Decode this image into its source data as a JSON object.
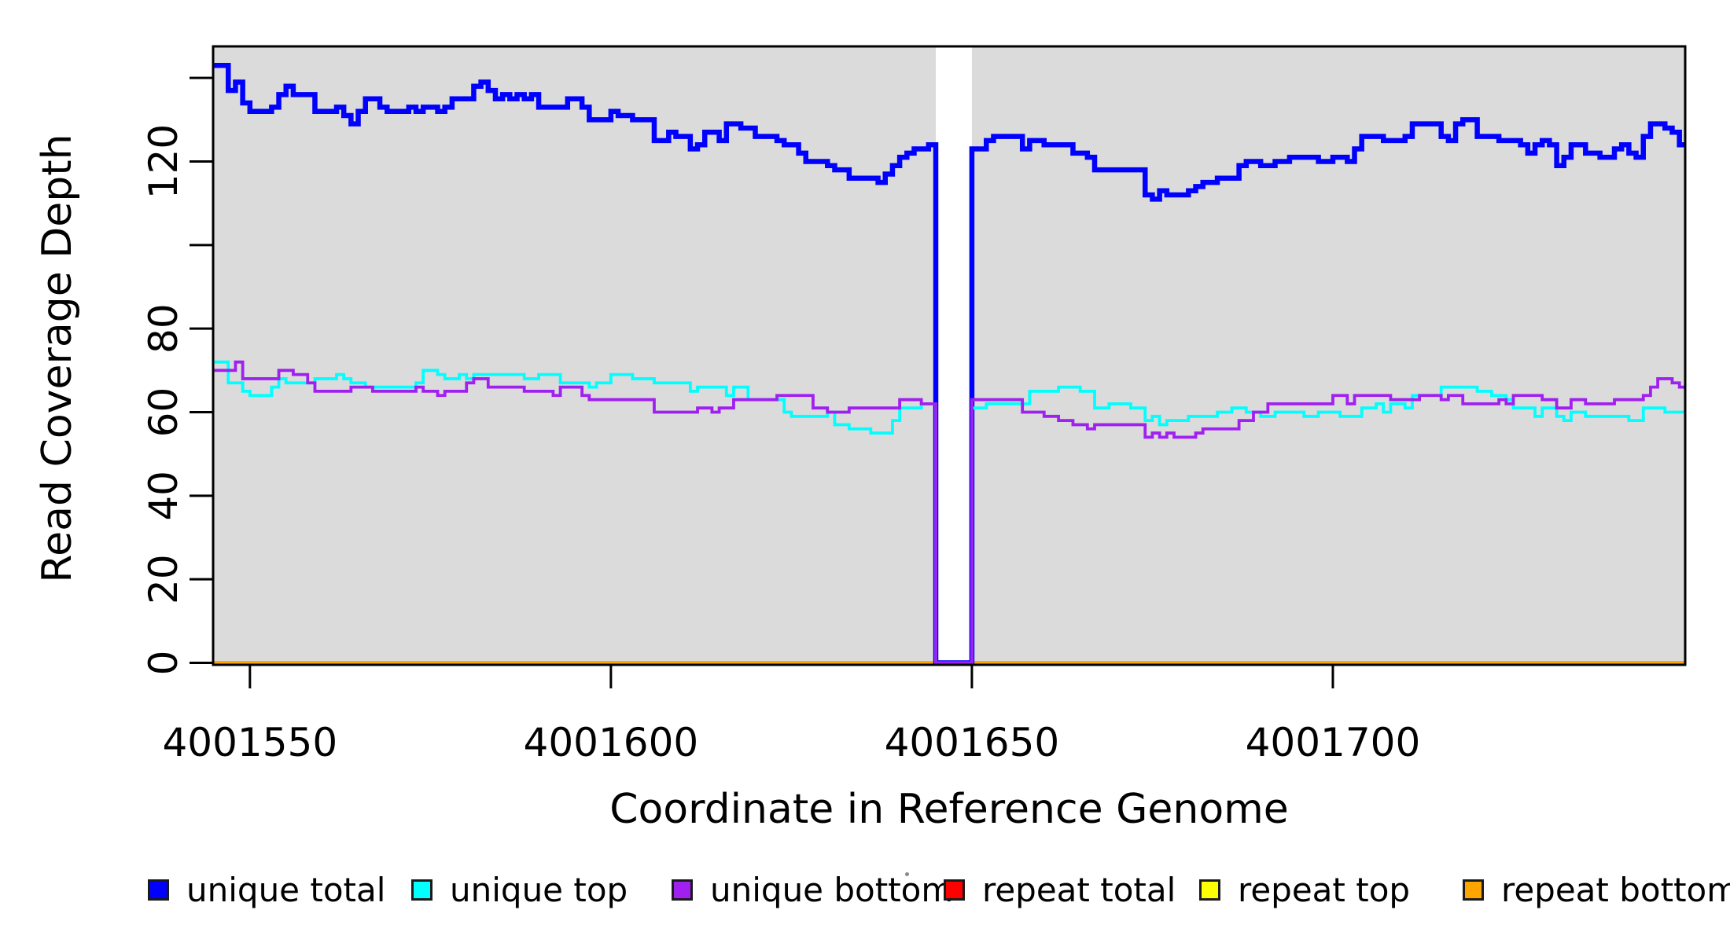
{
  "figure": {
    "background": "#FFFFFF",
    "plot_background": "#DBDBDB",
    "border_color": "#000000",
    "gap_band": {
      "x_start": 4001645,
      "x_end": 4001650,
      "color": "#FFFFFF"
    }
  },
  "axes": {
    "x": {
      "title": "Coordinate in Reference Genome",
      "ticks": [
        4001550,
        4001600,
        4001650,
        4001700
      ],
      "tick_labels": [
        "4001550",
        "4001600",
        "4001650",
        "4001700"
      ],
      "range": [
        4001544.9,
        4001748.8
      ]
    },
    "y": {
      "title": "Read Coverage Depth",
      "ticks": [
        0,
        20,
        40,
        60,
        80,
        100,
        120,
        140
      ],
      "labeled_tick_values": [
        0,
        20,
        40,
        60,
        80,
        120
      ],
      "tick_labels": [
        "0",
        "20",
        "40",
        "60",
        "80",
        "120"
      ],
      "range": [
        0,
        147.5
      ]
    }
  },
  "legend": {
    "items": [
      {
        "label": "unique total",
        "color": "#0000FF"
      },
      {
        "label": "unique top",
        "color": "#00FFFF"
      },
      {
        "label": "unique bottom",
        "color": "#A020F0"
      },
      {
        "label": "repeat total",
        "color": "#FF0000"
      },
      {
        "label": "repeat top",
        "color": "#FFFF00"
      },
      {
        "label": "repeat bottom",
        "color": "#FFA500"
      }
    ]
  },
  "chart_data": {
    "type": "line",
    "step": true,
    "title": "",
    "xlabel": "Coordinate in Reference Genome",
    "ylabel": "Read Coverage Depth",
    "x_start": 4001545,
    "x_step": 1,
    "x_end_edge": 4001748.8,
    "grid": false,
    "legend_position": "bottom",
    "draw_order": [
      3,
      4,
      5,
      0,
      1,
      2
    ],
    "series": [
      {
        "name": "unique total",
        "color": "#0000FF",
        "width": 6.5,
        "values": [
          143,
          143,
          137,
          139,
          134,
          132,
          132,
          132,
          133,
          136,
          138,
          136,
          136,
          136,
          132,
          132,
          132,
          133,
          131,
          129,
          132,
          135,
          135,
          133,
          132,
          132,
          132,
          133,
          132,
          133,
          133,
          132,
          133,
          135,
          135,
          135,
          138,
          139,
          137,
          135,
          136,
          135,
          136,
          135,
          136,
          133,
          133,
          133,
          133,
          135,
          135,
          133,
          130,
          130,
          130,
          132,
          131,
          131,
          130,
          130,
          130,
          125,
          125,
          127,
          126,
          126,
          123,
          124,
          127,
          127,
          125,
          129,
          129,
          128,
          128,
          126,
          126,
          126,
          125,
          124,
          124,
          122,
          120,
          120,
          120,
          119,
          118,
          118,
          116,
          116,
          116,
          116,
          115,
          117,
          119,
          121,
          122,
          123,
          123,
          124,
          0,
          0,
          0,
          0,
          0,
          123,
          123,
          125,
          126,
          126,
          126,
          126,
          123,
          125,
          125,
          124,
          124,
          124,
          124,
          122,
          122,
          121,
          118,
          118,
          118,
          118,
          118,
          118,
          118,
          112,
          111,
          113,
          112,
          112,
          112,
          113,
          114,
          115,
          115,
          116,
          116,
          116,
          119,
          120,
          120,
          119,
          119,
          120,
          120,
          121,
          121,
          121,
          121,
          120,
          120,
          121,
          121,
          120,
          123,
          126,
          126,
          126,
          125,
          125,
          125,
          126,
          129,
          129,
          129,
          129,
          126,
          125,
          129,
          130,
          130,
          126,
          126,
          126,
          125,
          125,
          125,
          124,
          122,
          124,
          125,
          124,
          119,
          121,
          124,
          124,
          122,
          122,
          121,
          121,
          123,
          124,
          122,
          121,
          126,
          129,
          129,
          128,
          127,
          124
        ]
      },
      {
        "name": "unique top",
        "color": "#00FFFF",
        "width": 3.8,
        "values": [
          72,
          72,
          67,
          67,
          65,
          64,
          64,
          64,
          66,
          68,
          67,
          67,
          67,
          67,
          68,
          68,
          68,
          69,
          68,
          67,
          67,
          66,
          66,
          66,
          66,
          66,
          66,
          66,
          67,
          70,
          70,
          69,
          68,
          68,
          69,
          68,
          69,
          69,
          69,
          69,
          69,
          69,
          69,
          68,
          68,
          69,
          69,
          69,
          67,
          67,
          67,
          67,
          66,
          67,
          67,
          69,
          69,
          69,
          68,
          68,
          68,
          67,
          67,
          67,
          67,
          67,
          65,
          66,
          66,
          66,
          66,
          64,
          66,
          66,
          63,
          63,
          63,
          63,
          63,
          60,
          59,
          59,
          59,
          59,
          59,
          60,
          57,
          57,
          56,
          56,
          56,
          55,
          55,
          55,
          58,
          61,
          61,
          61,
          62,
          62,
          0,
          0,
          0,
          0,
          0,
          61,
          61,
          62,
          62,
          62,
          62,
          62,
          62,
          65,
          65,
          65,
          65,
          66,
          66,
          66,
          65,
          65,
          61,
          61,
          62,
          62,
          62,
          61,
          61,
          58,
          59,
          57,
          58,
          58,
          58,
          59,
          59,
          59,
          59,
          60,
          60,
          61,
          61,
          60,
          60,
          59,
          59,
          60,
          60,
          60,
          60,
          59,
          59,
          60,
          60,
          60,
          59,
          59,
          59,
          61,
          61,
          62,
          60,
          62,
          62,
          61,
          64,
          64,
          64,
          64,
          66,
          66,
          66,
          66,
          66,
          65,
          65,
          64,
          64,
          63,
          61,
          61,
          61,
          59,
          61,
          61,
          59,
          58,
          60,
          60,
          59,
          59,
          59,
          59,
          59,
          59,
          58,
          58,
          61,
          61,
          61,
          60,
          60,
          60
        ]
      },
      {
        "name": "unique bottom",
        "color": "#A020F0",
        "width": 3.8,
        "values": [
          70,
          70,
          70,
          72,
          68,
          68,
          68,
          68,
          68,
          70,
          70,
          69,
          69,
          67,
          65,
          65,
          65,
          65,
          65,
          66,
          66,
          66,
          65,
          65,
          65,
          65,
          65,
          65,
          66,
          65,
          65,
          64,
          65,
          65,
          65,
          67,
          68,
          68,
          66,
          66,
          66,
          66,
          66,
          65,
          65,
          65,
          65,
          64,
          66,
          66,
          66,
          64,
          63,
          63,
          63,
          63,
          63,
          63,
          63,
          63,
          63,
          60,
          60,
          60,
          60,
          60,
          60,
          61,
          61,
          60,
          61,
          61,
          63,
          63,
          63,
          63,
          63,
          63,
          64,
          64,
          64,
          64,
          64,
          61,
          61,
          60,
          60,
          60,
          61,
          61,
          61,
          61,
          61,
          61,
          61,
          63,
          63,
          63,
          62,
          62,
          0,
          0,
          0,
          0,
          0,
          63,
          63,
          63,
          63,
          63,
          63,
          63,
          60,
          60,
          60,
          59,
          59,
          58,
          58,
          57,
          57,
          56,
          57,
          57,
          57,
          57,
          57,
          57,
          57,
          54,
          55,
          54,
          55,
          54,
          54,
          54,
          55,
          56,
          56,
          56,
          56,
          56,
          58,
          58,
          60,
          60,
          62,
          62,
          62,
          62,
          62,
          62,
          62,
          62,
          62,
          64,
          64,
          62,
          64,
          64,
          64,
          64,
          64,
          63,
          63,
          63,
          63,
          64,
          64,
          64,
          63,
          64,
          64,
          62,
          62,
          62,
          62,
          62,
          63,
          62,
          64,
          64,
          64,
          64,
          63,
          63,
          61,
          61,
          63,
          63,
          62,
          62,
          62,
          62,
          63,
          63,
          63,
          63,
          64,
          66,
          68,
          68,
          67,
          66
        ]
      },
      {
        "name": "repeat total",
        "color": "#FF0000",
        "width": 4.5,
        "constant": 0
      },
      {
        "name": "repeat top",
        "color": "#FFFF00",
        "width": 4.5,
        "constant": 0
      },
      {
        "name": "repeat bottom",
        "color": "#FFA500",
        "width": 4.5,
        "constant": 0
      }
    ]
  }
}
